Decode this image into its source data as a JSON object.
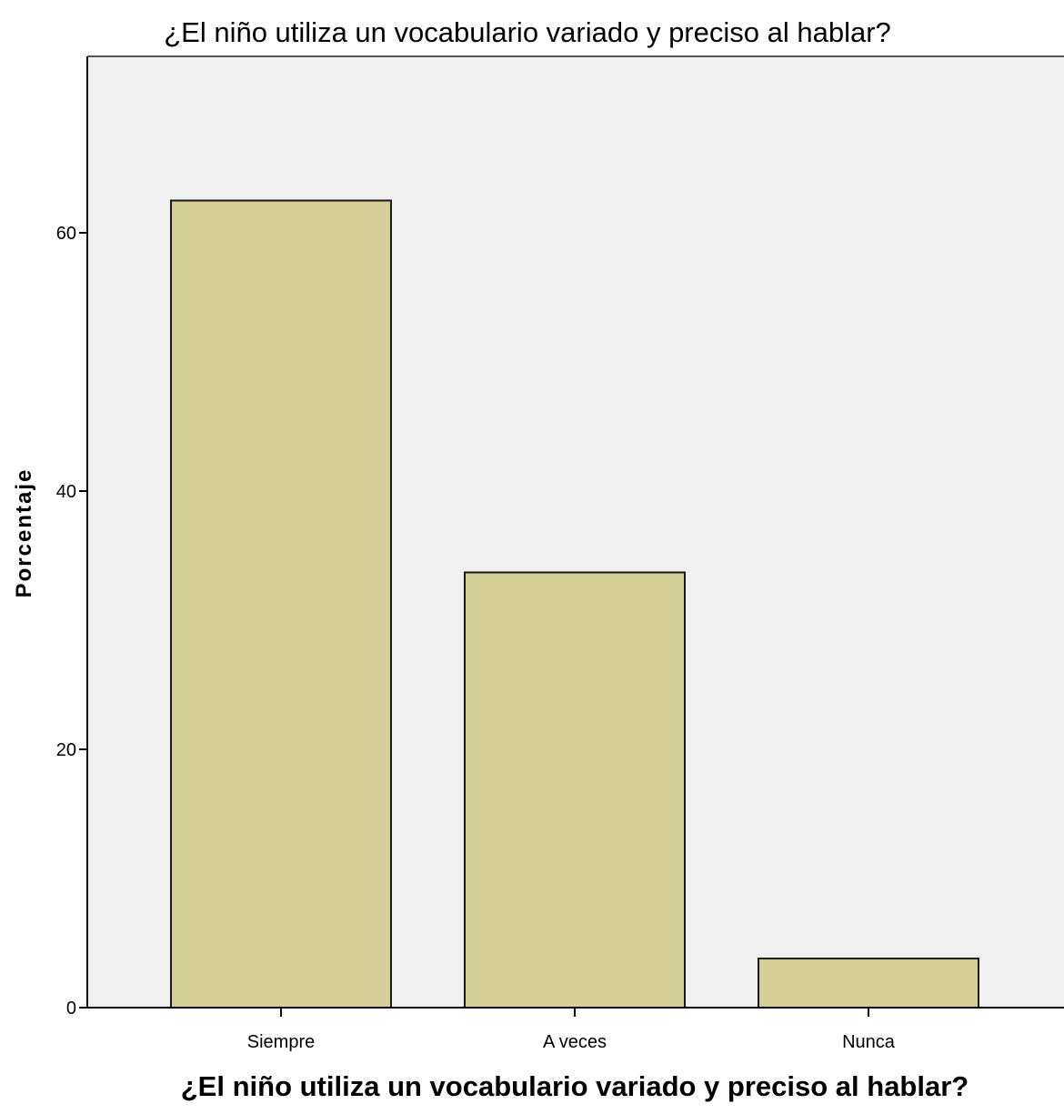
{
  "chart_data": {
    "type": "bar",
    "title": "¿El niño utiliza un vocabulario variado y preciso al hablar?",
    "xlabel": "¿El niño utiliza un vocabulario variado y preciso al hablar?",
    "ylabel": "Porcentaje",
    "categories": [
      "Siempre",
      "A veces",
      "Nunca"
    ],
    "values": [
      62.5,
      33.7,
      3.8
    ],
    "ylim": [
      0,
      75
    ],
    "yticks": [
      0,
      20,
      40,
      60
    ],
    "grid": false,
    "legend": "none",
    "colors": {
      "bar_fill": "#d3cf96",
      "bar_stroke": "#1a1a1a",
      "plot_background": "#f0f0f0",
      "axis": "#000000"
    }
  }
}
